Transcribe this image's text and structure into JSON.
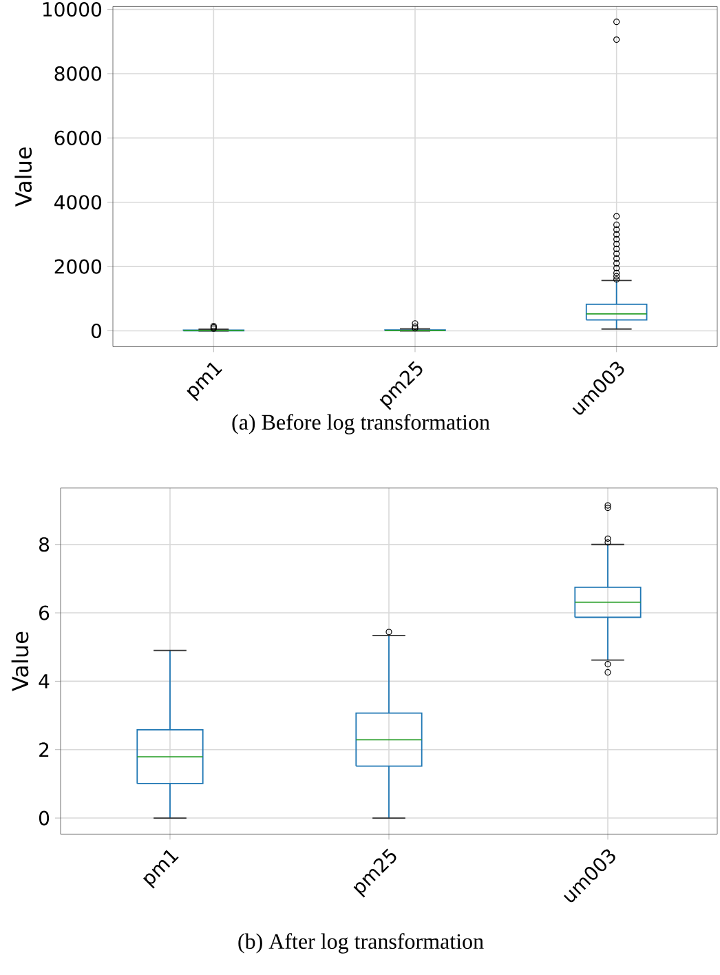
{
  "chart_data": [
    {
      "type": "box",
      "categories": [
        "pm1",
        "pm25",
        "um003"
      ],
      "ylabel": "Value",
      "ylim": [
        -490,
        10090
      ],
      "yticks": [
        0,
        2000,
        4000,
        6000,
        8000,
        10000
      ],
      "grid": true,
      "series": [
        {
          "color": "#1f77b4",
          "boxes": [
            {
              "low": 0,
              "q1": 5,
              "median": 12,
              "q3": 22,
              "high": 50,
              "outliers": [
                70,
                110,
                150
              ]
            },
            {
              "low": 0,
              "q1": 7,
              "median": 15,
              "q3": 30,
              "high": 60,
              "outliers": [
                80,
                130,
                230
              ]
            },
            {
              "low": 56,
              "q1": 342,
              "median": 527,
              "q3": 826,
              "high": 1567,
              "outliers": [
                1600,
                1700,
                1800,
                1950,
                2100,
                2250,
                2400,
                2550,
                2700,
                2850,
                3000,
                3150,
                3300,
                3565,
                9057,
                9613
              ]
            }
          ]
        }
      ],
      "annotations": [
        "(a) Before log transformation"
      ]
    },
    {
      "type": "box",
      "categories": [
        "pm1",
        "pm25",
        "um003"
      ],
      "ylabel": "Value",
      "ylim": [
        -0.47,
        9.65
      ],
      "yticks": [
        0,
        2,
        4,
        6,
        8
      ],
      "grid": true,
      "series": [
        {
          "color": "#1f77b4",
          "boxes": [
            {
              "low": 0,
              "q1": 1.01,
              "median": 1.79,
              "q3": 2.58,
              "high": 4.9
            },
            {
              "low": 0,
              "q1": 1.52,
              "median": 2.29,
              "q3": 3.07,
              "high": 5.34,
              "outliers": [
                5.44
              ]
            },
            {
              "low": 4.62,
              "q1": 5.87,
              "median": 6.31,
              "q3": 6.75,
              "high": 8.0,
              "outliers": [
                4.26,
                4.5,
                8.06,
                8.17,
                9.07,
                9.14
              ]
            }
          ]
        }
      ],
      "annotations": [
        "(b) After log transformation"
      ]
    }
  ]
}
